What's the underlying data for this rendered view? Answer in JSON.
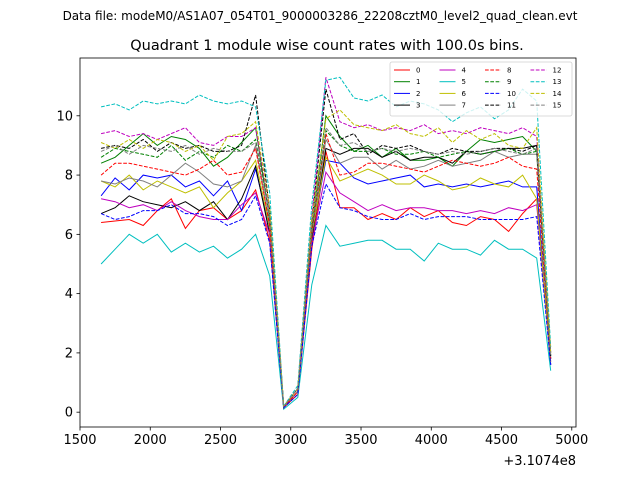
{
  "chart_data": {
    "type": "line",
    "suptitle": "Data file: modeM0/AS1A07_054T01_9000003286_22208cztM0_level2_quad_clean.evt",
    "title": "Quadrant 1 module wise count rates with 100.0s bins.",
    "xlabel": "",
    "ylabel": "",
    "x_offset_label": "+3.1074e8",
    "xlim": [
      1500,
      5030
    ],
    "ylim": [
      -0.5,
      11.95
    ],
    "xticks": [
      1500,
      2000,
      2500,
      3000,
      3500,
      4000,
      4500,
      5000
    ],
    "yticks": [
      0,
      2,
      4,
      6,
      8,
      10
    ],
    "grid": false,
    "legend": {
      "placement": "top-right",
      "columns": 4
    },
    "x": [
      1650,
      1750,
      1850,
      1950,
      2050,
      2150,
      2250,
      2350,
      2450,
      2550,
      2650,
      2750,
      2850,
      2950,
      3050,
      3150,
      3250,
      3350,
      3450,
      3550,
      3650,
      3750,
      3850,
      3950,
      4050,
      4150,
      4250,
      4350,
      4450,
      4550,
      4650,
      4750,
      4850
    ],
    "series": [
      {
        "name": "0",
        "color": "#ff0000",
        "dash": "solid",
        "values": [
          6.4,
          6.45,
          6.5,
          6.3,
          6.8,
          7.2,
          6.2,
          6.8,
          6.9,
          6.5,
          6.8,
          7.5,
          5.8,
          0.15,
          0.6,
          5.5,
          8.8,
          6.9,
          6.9,
          6.5,
          6.7,
          6.5,
          6.9,
          6.6,
          6.8,
          6.4,
          6.3,
          6.6,
          6.5,
          6.1,
          6.7,
          7.2,
          1.6
        ]
      },
      {
        "name": "1",
        "color": "#008000",
        "dash": "solid",
        "values": [
          8.4,
          8.6,
          9.0,
          9.4,
          9.0,
          9.3,
          9.2,
          8.9,
          8.3,
          8.6,
          9.1,
          9.6,
          6.5,
          0.2,
          0.8,
          6.2,
          10.0,
          9.3,
          8.8,
          9.0,
          8.6,
          8.9,
          8.5,
          8.5,
          8.6,
          8.3,
          8.8,
          9.2,
          9.1,
          9.2,
          9.3,
          8.8,
          2.0
        ]
      },
      {
        "name": "2",
        "color": "#0000ff",
        "dash": "solid",
        "values": [
          7.3,
          7.9,
          7.5,
          8.0,
          7.9,
          8.0,
          7.6,
          7.8,
          7.3,
          7.8,
          6.8,
          8.2,
          6.2,
          0.15,
          0.7,
          6.0,
          8.5,
          8.4,
          7.9,
          7.7,
          7.8,
          7.9,
          8.0,
          7.6,
          7.7,
          7.6,
          7.7,
          7.6,
          7.7,
          7.8,
          7.6,
          7.6,
          1.6
        ]
      },
      {
        "name": "3",
        "color": "#000000",
        "dash": "solid",
        "values": [
          6.7,
          6.9,
          7.3,
          7.1,
          7.0,
          6.9,
          7.1,
          6.8,
          7.1,
          6.5,
          7.2,
          8.3,
          6.0,
          0.15,
          0.7,
          5.8,
          8.9,
          8.7,
          8.9,
          8.9,
          8.6,
          8.8,
          8.5,
          8.6,
          8.6,
          8.4,
          8.8,
          8.7,
          8.8,
          8.9,
          8.9,
          9.0,
          1.8
        ]
      },
      {
        "name": "4",
        "color": "#bf00bf",
        "dash": "solid",
        "values": [
          7.2,
          7.1,
          6.9,
          7.0,
          6.8,
          7.1,
          6.8,
          6.6,
          6.5,
          6.5,
          7.0,
          7.4,
          6.0,
          0.15,
          0.7,
          5.7,
          8.1,
          7.4,
          7.1,
          6.8,
          7.0,
          6.8,
          6.9,
          6.9,
          6.8,
          6.8,
          6.7,
          6.8,
          6.7,
          6.9,
          6.8,
          7.0,
          1.7
        ]
      },
      {
        "name": "5",
        "color": "#00bfbf",
        "dash": "solid",
        "values": [
          5.0,
          5.5,
          6.0,
          5.7,
          6.0,
          5.4,
          5.7,
          5.4,
          5.6,
          5.2,
          5.5,
          6.0,
          4.6,
          0.1,
          0.5,
          4.3,
          6.3,
          5.6,
          5.7,
          5.8,
          5.8,
          5.5,
          5.5,
          5.1,
          5.7,
          5.5,
          5.5,
          5.3,
          5.8,
          5.5,
          5.5,
          5.2,
          1.4
        ]
      },
      {
        "name": "6",
        "color": "#bfbf00",
        "dash": "solid",
        "values": [
          7.8,
          7.6,
          8.0,
          7.5,
          7.8,
          7.6,
          7.4,
          7.6,
          6.9,
          7.4,
          7.8,
          8.5,
          6.2,
          0.15,
          0.7,
          6.0,
          8.6,
          7.8,
          8.0,
          8.2,
          8.0,
          7.7,
          7.7,
          8.0,
          7.8,
          7.5,
          7.6,
          7.9,
          7.7,
          7.6,
          8.0,
          7.2,
          1.7
        ]
      },
      {
        "name": "7",
        "color": "#808080",
        "dash": "solid",
        "values": [
          7.8,
          7.7,
          7.9,
          7.8,
          7.6,
          8.0,
          8.4,
          8.1,
          7.7,
          7.6,
          7.8,
          9.0,
          6.3,
          0.15,
          0.7,
          6.0,
          9.2,
          8.4,
          8.6,
          8.6,
          8.2,
          8.5,
          8.2,
          8.3,
          8.5,
          8.3,
          8.4,
          8.5,
          8.8,
          8.6,
          8.7,
          8.7,
          1.8
        ]
      },
      {
        "name": "8",
        "color": "#ff0000",
        "dash": "dashed",
        "values": [
          8.0,
          8.4,
          8.4,
          8.3,
          8.2,
          8.1,
          8.0,
          8.2,
          8.5,
          8.0,
          8.1,
          8.9,
          6.3,
          0.15,
          0.7,
          6.1,
          9.4,
          8.0,
          8.1,
          8.4,
          8.4,
          8.3,
          8.2,
          8.1,
          8.3,
          8.5,
          8.4,
          8.3,
          8.4,
          8.6,
          8.3,
          8.2,
          1.8
        ]
      },
      {
        "name": "9",
        "color": "#008000",
        "dash": "dashed",
        "values": [
          8.6,
          8.9,
          8.8,
          8.7,
          8.6,
          9.0,
          8.5,
          8.8,
          8.6,
          9.0,
          8.8,
          9.2,
          6.6,
          0.2,
          0.8,
          6.2,
          9.5,
          9.0,
          8.8,
          8.8,
          8.9,
          8.7,
          8.7,
          8.8,
          8.6,
          8.7,
          8.8,
          8.7,
          8.8,
          8.9,
          8.7,
          8.8,
          1.9
        ]
      },
      {
        "name": "10",
        "color": "#0000ff",
        "dash": "dashed",
        "values": [
          6.7,
          6.5,
          6.6,
          6.8,
          6.8,
          7.0,
          6.7,
          6.7,
          6.6,
          6.3,
          6.5,
          7.3,
          5.7,
          0.15,
          0.6,
          5.6,
          7.7,
          6.9,
          6.8,
          6.6,
          6.5,
          6.5,
          6.7,
          6.5,
          6.6,
          6.6,
          6.6,
          6.5,
          6.5,
          6.5,
          6.5,
          6.6,
          1.6
        ]
      },
      {
        "name": "11",
        "color": "#000000",
        "dash": "dashed",
        "values": [
          8.9,
          9.0,
          8.9,
          9.2,
          8.8,
          9.1,
          8.9,
          9.0,
          8.8,
          8.8,
          9.0,
          10.7,
          6.8,
          0.2,
          0.8,
          6.4,
          10.9,
          9.2,
          9.4,
          8.7,
          9.0,
          8.9,
          9.0,
          8.8,
          8.7,
          8.9,
          8.8,
          8.8,
          8.9,
          8.9,
          8.8,
          9.0,
          1.9
        ]
      },
      {
        "name": "12",
        "color": "#bf00bf",
        "dash": "dashed",
        "values": [
          9.4,
          9.5,
          9.3,
          9.4,
          9.2,
          9.4,
          9.6,
          9.1,
          9.0,
          9.3,
          9.3,
          9.6,
          6.8,
          0.2,
          0.8,
          6.6,
          11.3,
          9.8,
          9.6,
          9.7,
          9.5,
          9.6,
          9.5,
          9.7,
          9.4,
          9.5,
          9.4,
          9.6,
          9.5,
          9.4,
          9.6,
          9.3,
          2.0
        ]
      },
      {
        "name": "13",
        "color": "#00bfbf",
        "dash": "dashed",
        "values": [
          10.3,
          10.4,
          10.2,
          10.5,
          10.4,
          10.5,
          10.4,
          10.7,
          10.5,
          10.4,
          10.5,
          10.3,
          7.4,
          0.2,
          0.9,
          7.0,
          11.2,
          11.3,
          10.6,
          10.5,
          10.7,
          10.3,
          10.5,
          10.4,
          10.2,
          9.8,
          10.1,
          10.3,
          9.9,
          10.2,
          10.9,
          10.5,
          2.2
        ]
      },
      {
        "name": "14",
        "color": "#bfbf00",
        "dash": "dashed",
        "values": [
          9.1,
          8.9,
          9.2,
          8.9,
          9.2,
          9.1,
          8.8,
          9.0,
          8.5,
          9.3,
          9.4,
          9.8,
          6.9,
          0.2,
          0.8,
          6.5,
          9.9,
          10.2,
          9.7,
          9.6,
          9.5,
          9.7,
          9.4,
          9.3,
          9.6,
          9.1,
          9.5,
          9.2,
          9.4,
          9.0,
          8.9,
          9.6,
          2.0
        ]
      },
      {
        "name": "15",
        "color": "#808080",
        "dash": "dashed",
        "values": [
          8.8,
          9.0,
          8.7,
          9.0,
          8.9,
          8.8,
          9.0,
          8.7,
          8.9,
          8.8,
          8.8,
          9.1,
          6.6,
          0.2,
          0.8,
          6.3,
          9.6,
          9.0,
          9.1,
          8.8,
          8.9,
          8.8,
          8.9,
          8.8,
          8.7,
          8.8,
          8.7,
          8.8,
          8.9,
          8.8,
          8.7,
          8.9,
          1.9
        ]
      }
    ]
  }
}
